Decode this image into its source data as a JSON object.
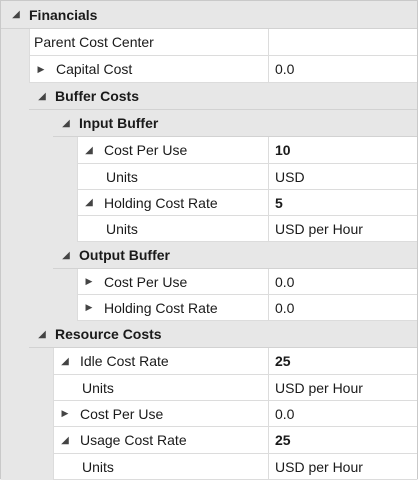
{
  "sections": {
    "financials": {
      "label": "Financials",
      "parent_cost_center": {
        "label": "Parent Cost Center",
        "value": ""
      },
      "capital_cost": {
        "label": "Capital Cost",
        "value": "0.0"
      },
      "buffer_costs": {
        "label": "Buffer Costs",
        "input_buffer": {
          "label": "Input Buffer",
          "cost_per_use": {
            "label": "Cost Per Use",
            "value": "10"
          },
          "cost_per_use_units": {
            "label": "Units",
            "value": "USD"
          },
          "holding_cost_rate": {
            "label": "Holding Cost Rate",
            "value": "5"
          },
          "holding_cost_rate_units": {
            "label": "Units",
            "value": "USD per Hour"
          }
        },
        "output_buffer": {
          "label": "Output Buffer",
          "cost_per_use": {
            "label": "Cost Per Use",
            "value": "0.0"
          },
          "holding_cost_rate": {
            "label": "Holding Cost Rate",
            "value": "0.0"
          }
        }
      },
      "resource_costs": {
        "label": "Resource Costs",
        "idle_cost_rate": {
          "label": "Idle Cost Rate",
          "value": "25"
        },
        "idle_cost_rate_units": {
          "label": "Units",
          "value": "USD per Hour"
        },
        "cost_per_use": {
          "label": "Cost Per Use",
          "value": "0.0"
        },
        "usage_cost_rate": {
          "label": "Usage Cost Rate",
          "value": "25"
        },
        "usage_cost_rate_units": {
          "label": "Units",
          "value": "USD per Hour"
        }
      }
    }
  },
  "icons": {
    "expanded": "triangle-down-icon",
    "collapsed": "triangle-right-icon"
  }
}
